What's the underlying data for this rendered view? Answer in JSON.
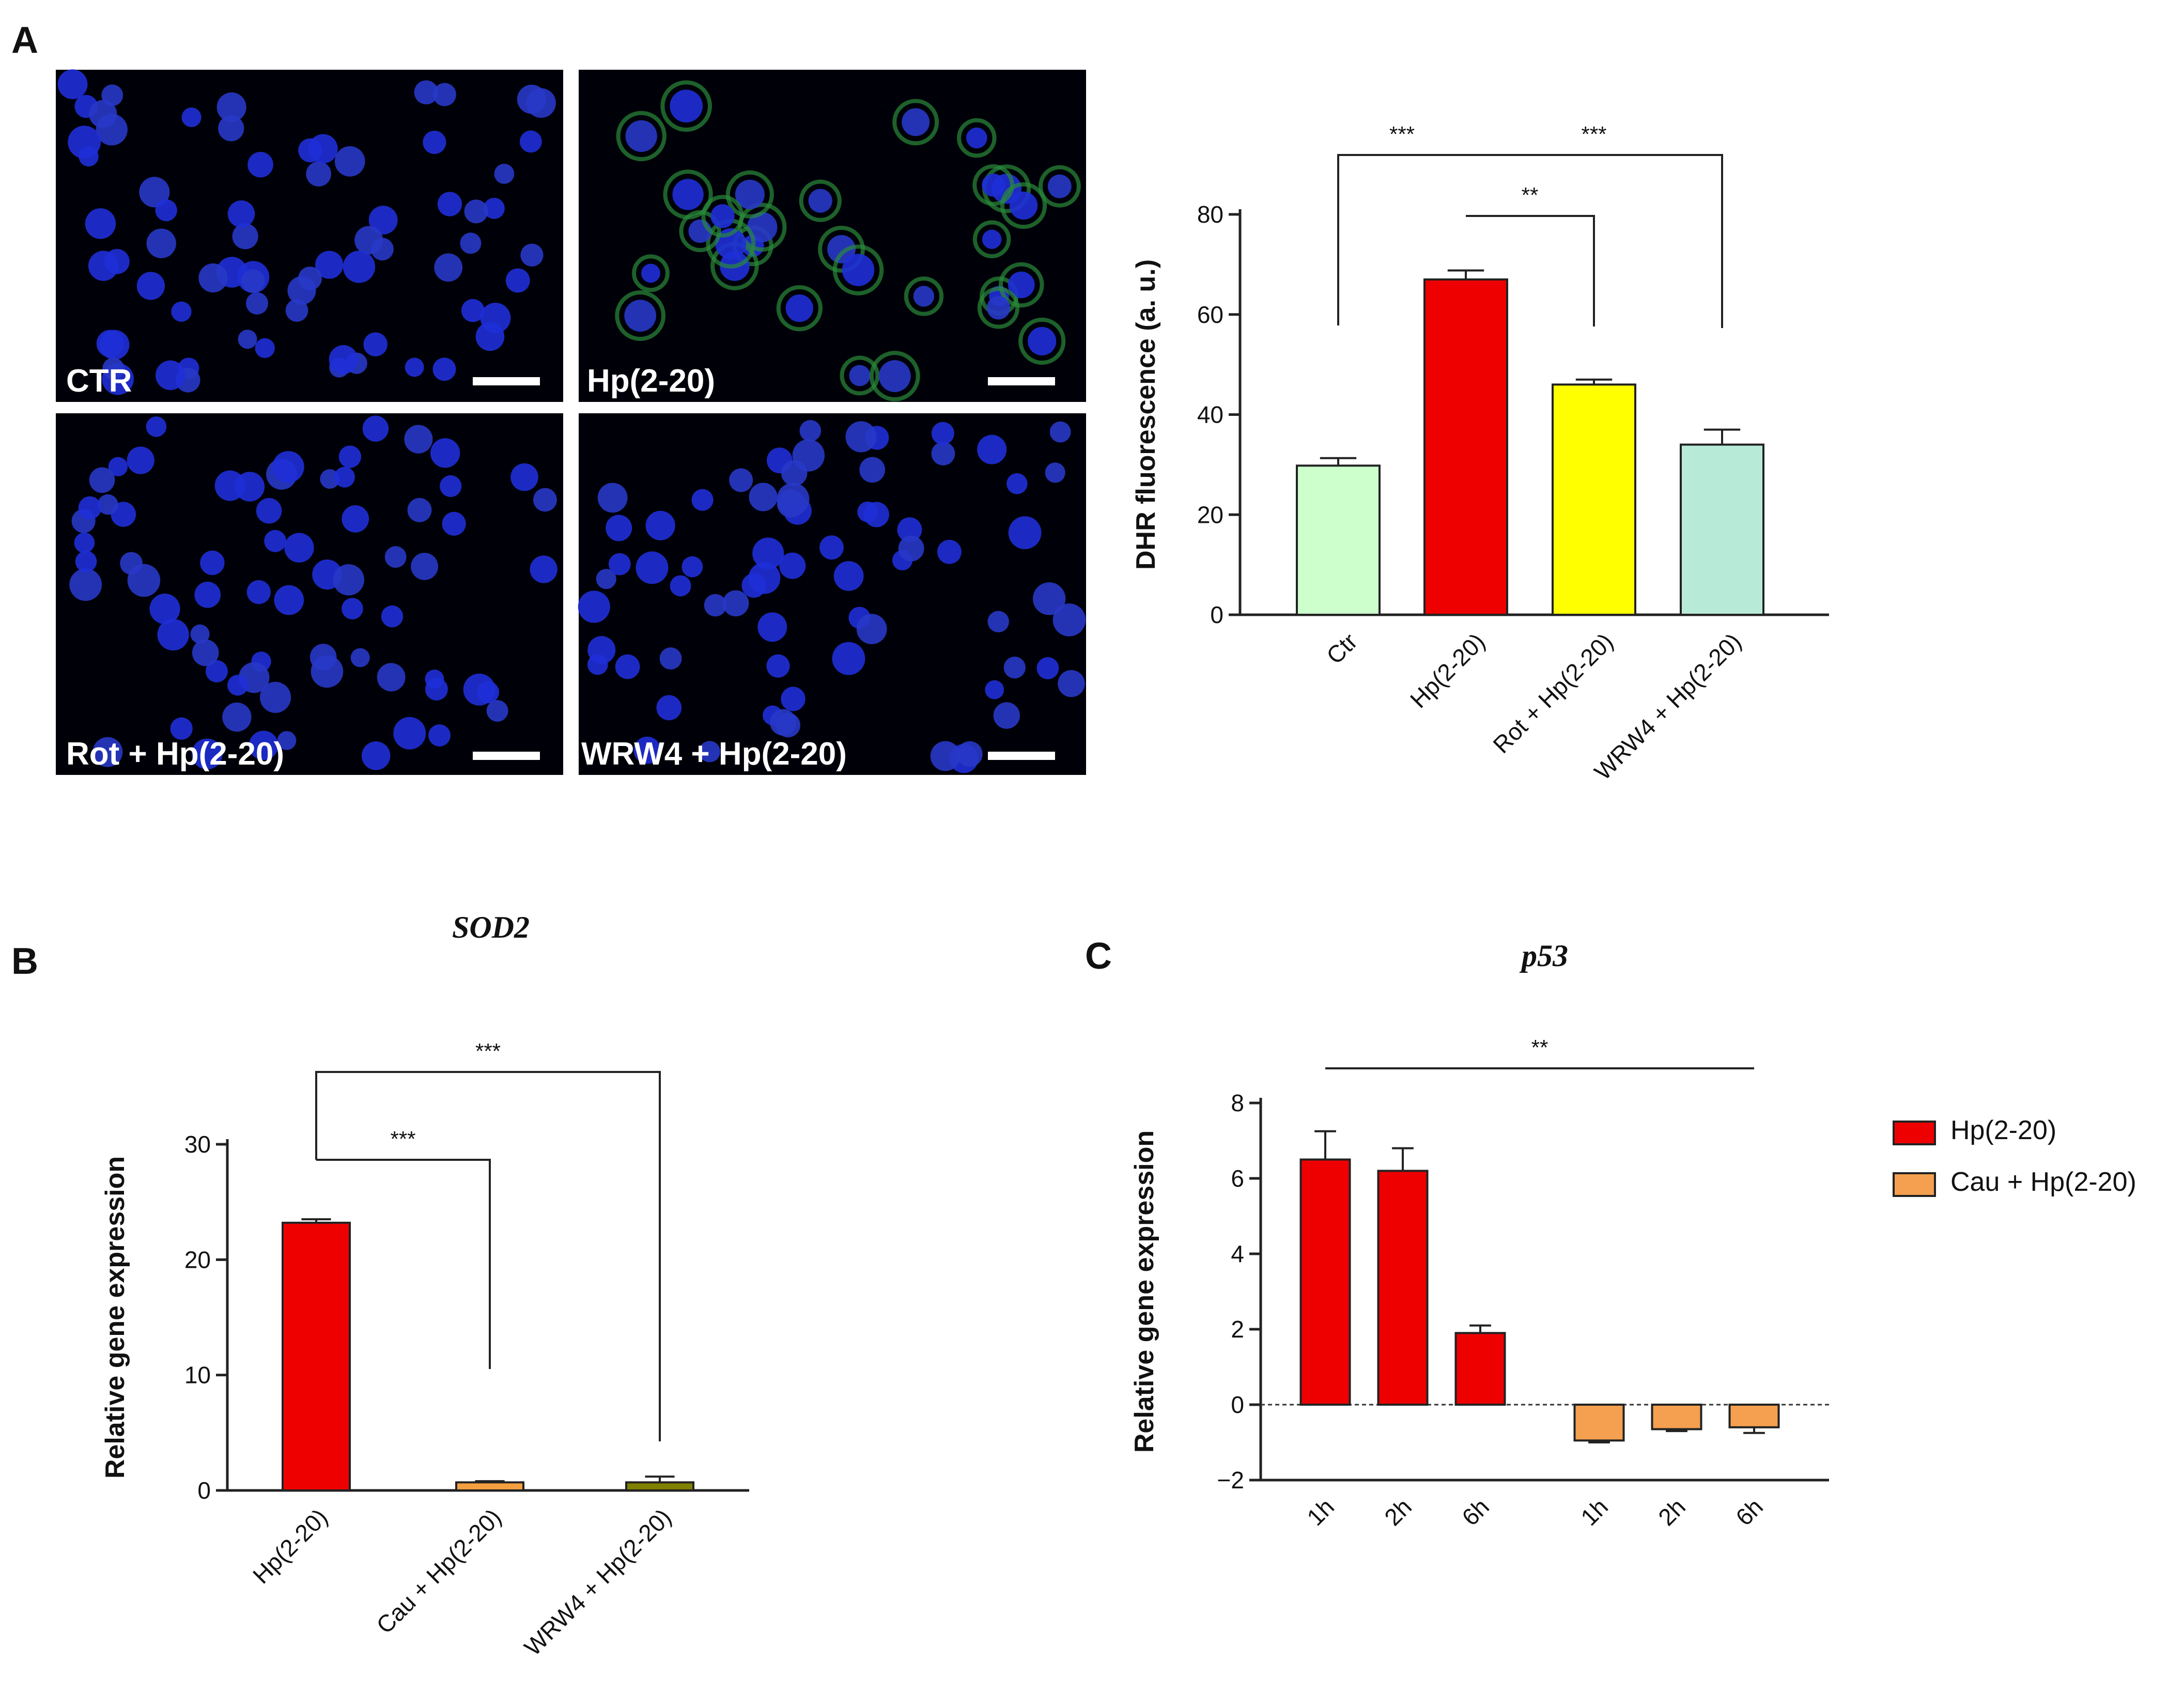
{
  "panels": {
    "A": {
      "letter": "A",
      "micrographs": [
        {
          "label": "CTR",
          "seed": 11,
          "green": false
        },
        {
          "label": "Hp(2-20)",
          "seed": 23,
          "green": true
        },
        {
          "label": "Rot + Hp(2-20)",
          "seed": 37,
          "green": false
        },
        {
          "label": "WRW4 + Hp(2-20)",
          "seed": 53,
          "green": false
        }
      ]
    },
    "B": {
      "letter": "B"
    },
    "C": {
      "letter": "C"
    }
  },
  "chart_data": [
    {
      "id": "dhr",
      "type": "bar",
      "title": "",
      "ylabel": "DHR fluorescence (a. u.)",
      "xlabel": "",
      "ylim": [
        0,
        80
      ],
      "yticks": [
        0,
        20,
        40,
        60,
        80
      ],
      "categories": [
        "Ctr",
        "Hp(2-20)",
        "Rot + Hp(2-20)",
        "WRW4 + Hp(2-20)"
      ],
      "values": [
        29.8,
        67,
        46,
        34
      ],
      "errors": [
        1.5,
        1.8,
        1.0,
        3.0
      ],
      "colors": [
        "#ccffcc",
        "#ee0000",
        "#ffff00",
        "#b8ead8"
      ],
      "significance": [
        {
          "from": 0,
          "to": 1,
          "label": "***"
        },
        {
          "from": 1,
          "to": 2,
          "label": "**"
        },
        {
          "from": 1,
          "to": 3,
          "label": "***"
        }
      ]
    },
    {
      "id": "sod2",
      "type": "bar",
      "title": "SOD2",
      "ylabel": "Relative gene expression",
      "xlabel": "",
      "ylim": [
        0,
        30
      ],
      "yticks": [
        0,
        10,
        20,
        30
      ],
      "categories": [
        "Hp(2-20)",
        "Cau + Hp(2-20)",
        "WRW4 + Hp(2-20)"
      ],
      "values": [
        23.2,
        0.7,
        0.7
      ],
      "errors": [
        0.3,
        0.1,
        0.5
      ],
      "colors": [
        "#ee0000",
        "#f4a040",
        "#808000"
      ],
      "significance": [
        {
          "from": 0,
          "to": 1,
          "label": "***"
        },
        {
          "from": 0,
          "to": 2,
          "label": "***"
        }
      ]
    },
    {
      "id": "p53",
      "type": "bar",
      "title": "p53",
      "ylabel": "Relative gene expression",
      "xlabel": "",
      "ylim": [
        -2,
        8
      ],
      "yticks": [
        -2,
        0,
        2,
        4,
        6,
        8
      ],
      "ytick_labels": [
        "−2",
        "0",
        "2",
        "4",
        "6",
        "8"
      ],
      "categories": [
        "1h",
        "2h",
        "6h",
        "1h",
        "2h",
        "6h"
      ],
      "series": [
        {
          "name": "Hp(2-20)",
          "color": "#ee0000",
          "values": [
            6.5,
            6.2,
            1.9,
            null,
            null,
            null
          ],
          "errors": [
            0.75,
            0.6,
            0.2,
            null,
            null,
            null
          ]
        },
        {
          "name": "Cau + Hp(2-20)",
          "color": "#f4a050",
          "values": [
            null,
            null,
            null,
            -0.95,
            -0.65,
            -0.6
          ],
          "errors": [
            null,
            null,
            null,
            0.05,
            0.05,
            0.15
          ]
        }
      ],
      "significance": [
        {
          "from": 0,
          "to": 5,
          "label": "**"
        }
      ],
      "legend_position": "right"
    }
  ]
}
